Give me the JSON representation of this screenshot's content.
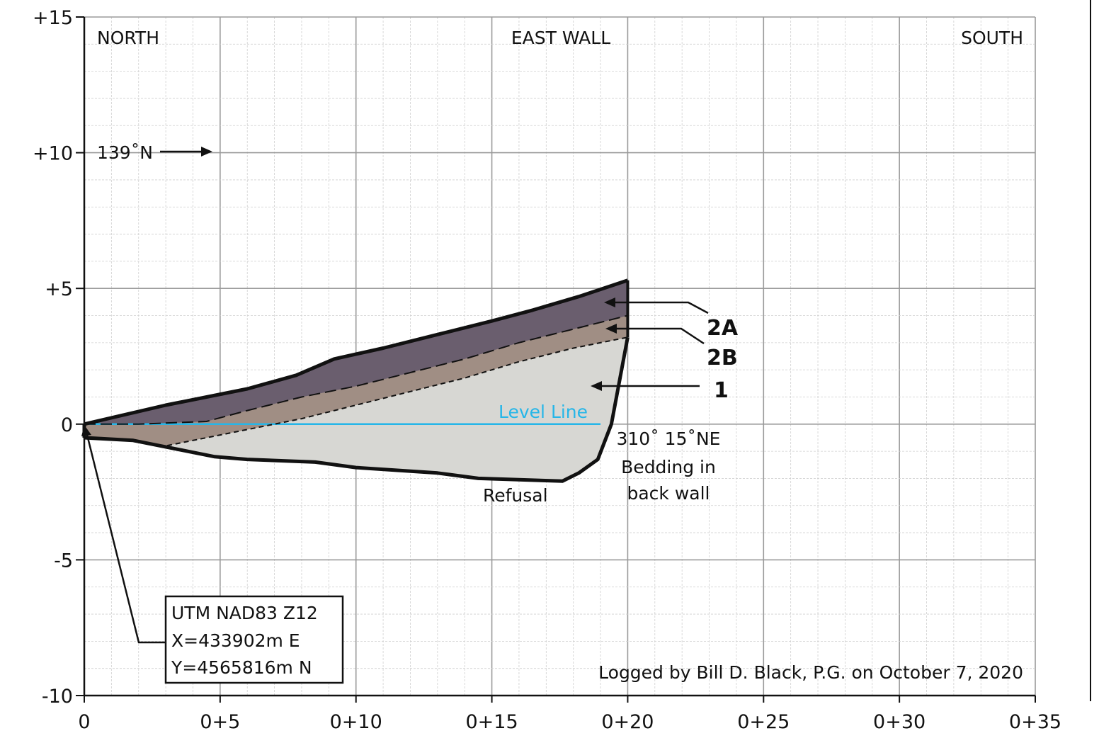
{
  "figure": {
    "title": "",
    "wall_label": "EAST WALL",
    "left_label": "NORTH",
    "right_label": "SOUTH",
    "bearing_label": "139˚N",
    "level_line_label": "Level Line",
    "refusal_label": "Refusal",
    "bedding_note": [
      "310˚ 15˚NE",
      "Bedding in",
      "back wall"
    ],
    "location_box": [
      "UTM NAD83 Z12",
      "X=433902m E",
      "Y=4565816m N"
    ],
    "logged_by": "Logged by Bill D. Black, P.G. on October 7, 2020",
    "unit_labels": [
      "2A",
      "2B",
      "1"
    ]
  },
  "axes": {
    "x_ticks": [
      {
        "label": "0",
        "value": 0
      },
      {
        "label": "0+5",
        "value": 5
      },
      {
        "label": "0+10",
        "value": 10
      },
      {
        "label": "0+15",
        "value": 15
      },
      {
        "label": "0+20",
        "value": 20
      },
      {
        "label": "0+25",
        "value": 25
      },
      {
        "label": "0+30",
        "value": 30
      },
      {
        "label": "0+35",
        "value": 35
      }
    ],
    "y_ticks": [
      {
        "label": "+15",
        "value": 15
      },
      {
        "label": "+10",
        "value": 10
      },
      {
        "label": "+5",
        "value": 5
      },
      {
        "label": "0",
        "value": 0
      },
      {
        "label": "-5",
        "value": -5
      },
      {
        "label": "-10",
        "value": -10
      }
    ],
    "xlim": [
      0,
      35
    ],
    "ylim": [
      -10,
      15
    ],
    "grid": true
  },
  "profile": {
    "ground_surface": [
      [
        0,
        0
      ],
      [
        3,
        0.7
      ],
      [
        6,
        1.3
      ],
      [
        7.8,
        1.8
      ],
      [
        9.2,
        2.4
      ],
      [
        11,
        2.8
      ],
      [
        13,
        3.3
      ],
      [
        15,
        3.8
      ],
      [
        16.5,
        4.2
      ],
      [
        18.2,
        4.7
      ],
      [
        20,
        5.3
      ]
    ],
    "contact_2a_2b": [
      [
        0,
        0
      ],
      [
        2,
        0
      ],
      [
        4.5,
        0.1
      ],
      [
        6,
        0.5
      ],
      [
        8,
        1
      ],
      [
        10,
        1.4
      ],
      [
        12,
        1.9
      ],
      [
        14,
        2.4
      ],
      [
        16,
        3
      ],
      [
        18,
        3.5
      ],
      [
        20,
        4
      ]
    ],
    "contact_2b_1": [
      [
        1.5,
        -0.6
      ],
      [
        3,
        -0.8
      ],
      [
        5.5,
        -0.3
      ],
      [
        8,
        0.2
      ],
      [
        10,
        0.7
      ],
      [
        12,
        1.2
      ],
      [
        14,
        1.7
      ],
      [
        16,
        2.3
      ],
      [
        18,
        2.8
      ],
      [
        20,
        3.2
      ]
    ],
    "trench_bottom": [
      [
        0,
        -0.5
      ],
      [
        1.8,
        -0.6
      ],
      [
        4.8,
        -1.2
      ],
      [
        6,
        -1.3
      ],
      [
        8.5,
        -1.4
      ],
      [
        10,
        -1.6
      ],
      [
        13,
        -1.8
      ],
      [
        14.5,
        -2
      ],
      [
        17.6,
        -2.1
      ],
      [
        18.2,
        -1.8
      ],
      [
        18.9,
        -1.3
      ],
      [
        19.4,
        0
      ],
      [
        20,
        3.2
      ]
    ],
    "level_line_y": 0,
    "level_line_x_end": 19
  },
  "colors": {
    "unit_2A": "#6a5e6e",
    "unit_2B": "#a08e84",
    "unit_1": "#d7d7d3",
    "level_line": "#26b6e8",
    "grid_major": "#9a9a9a",
    "grid_minor": "#cfcfcf"
  }
}
